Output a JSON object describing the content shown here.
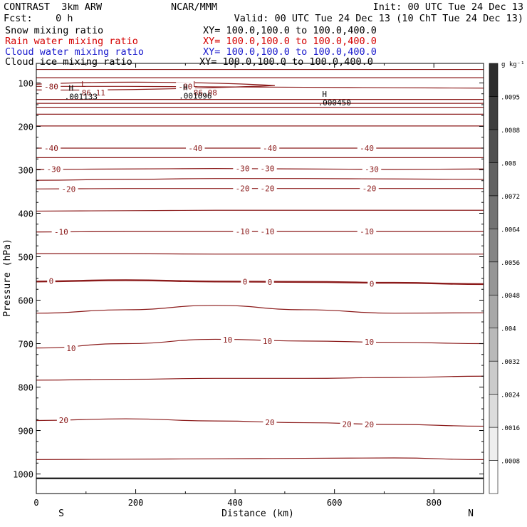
{
  "header": {
    "title_left": "CONTRAST  3km ARW",
    "title_center": "NCAR/MMM",
    "init": "Init: 00 UTC Tue 24 Dec 13",
    "fcst": "Fcst:    0 h",
    "valid": "Valid: 00 UTC Tue 24 Dec 13 (10 ChT Tue 24 Dec 13)"
  },
  "fields": [
    {
      "name": "Snow mixing ratio",
      "xy": "XY= 100.0,100.0 to 100.0,400.0",
      "color": "#000000"
    },
    {
      "name": "Rain water mixing ratio",
      "xy": "XY= 100.0,100.0 to 100.0,400.0",
      "color": "#d40000"
    },
    {
      "name": "Cloud water mixing ratio",
      "xy": "XY= 100.0,100.0 to 100.0,400.0",
      "color": "#1a1acc"
    },
    {
      "name": "Cloud ice mixing ratio",
      "xy": "XY= 100.0,100.0 to 100.0,400.0",
      "color": "#000000"
    }
  ],
  "colors": {
    "isotherm": "#8b1a1a",
    "axis": "#000000"
  },
  "chart_data": {
    "type": "line",
    "xlabel": "Distance (km)",
    "ylabel": "Pressure (hPa)",
    "xlim": [
      0,
      900
    ],
    "ylim": [
      1045,
      55
    ],
    "xticks": [
      0,
      200,
      400,
      600,
      800
    ],
    "yticks": [
      100,
      200,
      300,
      400,
      500,
      600,
      700,
      800,
      900,
      1000
    ],
    "end_labels": {
      "left": "S",
      "right": "N"
    },
    "colorbar": {
      "unit": "g kg⁻¹",
      "ticks": [
        ".0008",
        ".0016",
        ".0024",
        ".0032",
        ".004",
        ".0048",
        ".0056",
        ".0064",
        ".0072",
        ".008",
        ".0088",
        ".0095"
      ]
    },
    "contours": [
      {
        "p": [
          69,
          69,
          69,
          69,
          69,
          69
        ],
        "label": null,
        "bold": false
      },
      {
        "p": [
          88,
          88,
          88,
          88,
          88,
          88
        ],
        "label": null,
        "bold": false
      },
      {
        "p": [
          108,
          108,
          109,
          110,
          111,
          112
        ],
        "label": "-80",
        "bold": false
      },
      {
        "p": [
          138,
          138,
          138,
          138,
          138,
          138
        ],
        "label": null,
        "bold": false
      },
      {
        "p": [
          147,
          147,
          147,
          147,
          147,
          147
        ],
        "label": null,
        "bold": false
      },
      {
        "p": [
          156,
          156,
          156,
          156,
          156,
          156
        ],
        "label": null,
        "bold": false
      },
      {
        "p": [
          172,
          172,
          172,
          172,
          172,
          172
        ],
        "label": null,
        "bold": false
      },
      {
        "p": [
          199,
          199,
          199,
          199,
          199,
          199
        ],
        "label": null,
        "bold": false
      },
      {
        "p": [
          250,
          250,
          250,
          250,
          250,
          250
        ],
        "label": "-40",
        "bold": false
      },
      {
        "p": [
          272,
          272,
          272,
          272,
          272,
          272
        ],
        "label": null,
        "bold": false
      },
      {
        "p": [
          299,
          298,
          297,
          298,
          299,
          298
        ],
        "label": "-30",
        "bold": false
      },
      {
        "p": [
          324,
          322,
          320,
          320,
          321,
          322
        ],
        "label": null,
        "bold": false
      },
      {
        "p": [
          344,
          343,
          343,
          343,
          343,
          343
        ],
        "label": "-20",
        "bold": false
      },
      {
        "p": [
          395,
          394,
          393,
          393,
          393,
          393
        ],
        "label": null,
        "bold": false
      },
      {
        "p": [
          443,
          442,
          442,
          442,
          442,
          442
        ],
        "label": "-10",
        "bold": false
      },
      {
        "p": [
          493,
          493,
          494,
          494,
          494,
          494
        ],
        "label": null,
        "bold": false
      },
      {
        "p": [
          557,
          554,
          557,
          558,
          560,
          563
        ],
        "label": "0",
        "bold": true
      },
      {
        "p": [
          630,
          622,
          612,
          622,
          630,
          629
        ],
        "label": null,
        "bold": false
      },
      {
        "p": [
          710,
          700,
          690,
          694,
          697,
          700
        ],
        "label": "10",
        "bold": false
      },
      {
        "p": [
          784,
          782,
          780,
          780,
          778,
          775
        ],
        "label": null,
        "bold": false
      },
      {
        "p": [
          877,
          873,
          878,
          882,
          886,
          890
        ],
        "label": "20",
        "bold": false
      },
      {
        "p": [
          967,
          966,
          965,
          964,
          963,
          967
        ],
        "label": null,
        "bold": false
      }
    ],
    "contour_x": [
      0,
      180,
      360,
      540,
      720,
      900
    ],
    "contour_labels": [
      {
        "x": 30,
        "p": 108,
        "text": "-80"
      },
      {
        "x": 300,
        "p": 108,
        "text": "-80"
      },
      {
        "x": 30,
        "p": 250,
        "text": "-40"
      },
      {
        "x": 320,
        "p": 250,
        "text": "-40"
      },
      {
        "x": 470,
        "p": 250,
        "text": "-40"
      },
      {
        "x": 665,
        "p": 250,
        "text": "-40"
      },
      {
        "x": 35,
        "p": 298,
        "text": "-30"
      },
      {
        "x": 415,
        "p": 297,
        "text": "-30"
      },
      {
        "x": 465,
        "p": 297,
        "text": "-30"
      },
      {
        "x": 675,
        "p": 298,
        "text": "-30"
      },
      {
        "x": 65,
        "p": 344,
        "text": "-20"
      },
      {
        "x": 415,
        "p": 343,
        "text": "-20"
      },
      {
        "x": 465,
        "p": 343,
        "text": "-20"
      },
      {
        "x": 670,
        "p": 343,
        "text": "-20"
      },
      {
        "x": 50,
        "p": 443,
        "text": "-10"
      },
      {
        "x": 415,
        "p": 442,
        "text": "-10"
      },
      {
        "x": 465,
        "p": 442,
        "text": "-10"
      },
      {
        "x": 665,
        "p": 442,
        "text": "-10"
      },
      {
        "x": 30,
        "p": 556,
        "text": "0"
      },
      {
        "x": 420,
        "p": 557,
        "text": "0"
      },
      {
        "x": 470,
        "p": 558,
        "text": "0"
      },
      {
        "x": 675,
        "p": 562,
        "text": "0"
      },
      {
        "x": 70,
        "p": 711,
        "text": "10"
      },
      {
        "x": 385,
        "p": 691,
        "text": "10"
      },
      {
        "x": 465,
        "p": 694,
        "text": "10"
      },
      {
        "x": 670,
        "p": 696,
        "text": "10"
      },
      {
        "x": 55,
        "p": 876,
        "text": "20"
      },
      {
        "x": 470,
        "p": 881,
        "text": "20"
      },
      {
        "x": 625,
        "p": 885,
        "text": "20"
      },
      {
        "x": 670,
        "p": 886,
        "text": "20"
      }
    ],
    "extrema": [
      {
        "x": 95,
        "p": 104,
        "text": "L",
        "val": "86.11",
        "hx": 70,
        "hp": 121,
        "h": "H",
        "hval": ".001133"
      },
      {
        "x": 320,
        "p": 104,
        "text": "L",
        "val": "86.08",
        "hx": 300,
        "hp": 120,
        "h": "H",
        "hval": ".001096"
      },
      {
        "hx": 580,
        "hp": 135,
        "h": "H",
        "hval": ".000450"
      }
    ],
    "surface_p": 1010
  }
}
